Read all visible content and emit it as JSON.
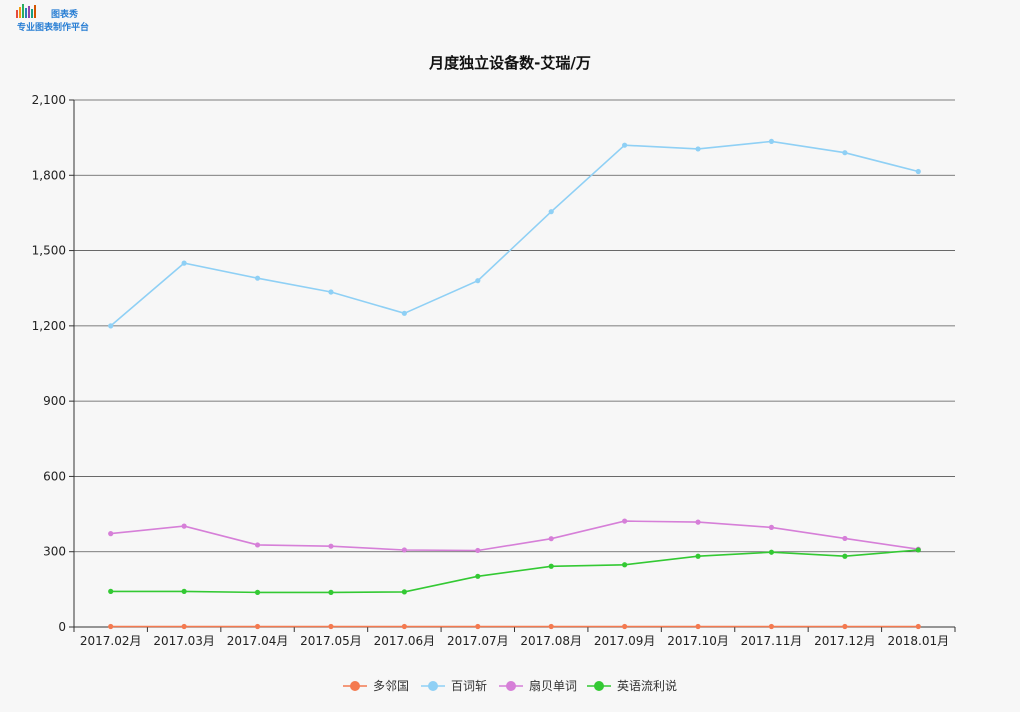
{
  "header": {
    "logo_main": "图表秀",
    "logo_sub": "专业图表制作平台"
  },
  "chart_data": {
    "type": "line",
    "title": "月度独立设备数-艾瑞/万",
    "xlabel": "",
    "ylabel": "",
    "categories": [
      "2017.02月",
      "2017.03月",
      "2017.04月",
      "2017.05月",
      "2017.06月",
      "2017.07月",
      "2017.08月",
      "2017.09月",
      "2017.10月",
      "2017.11月",
      "2017.12月",
      "2018.01月"
    ],
    "ylim": [
      0,
      2100
    ],
    "yticks": [
      0,
      300,
      600,
      900,
      1200,
      1500,
      1800,
      2100
    ],
    "ytick_labels": [
      "0",
      "300",
      "600",
      "900",
      "1,200",
      "1,500",
      "1,800",
      "2,100"
    ],
    "grid": true,
    "legend_position": "bottom",
    "series": [
      {
        "name": "多邻国",
        "color": "#f47a50",
        "values": [
          2,
          2,
          2,
          2,
          2,
          2,
          2,
          2,
          2,
          2,
          2,
          2
        ]
      },
      {
        "name": "百词斩",
        "color": "#8fd0f5",
        "values": [
          1200,
          1450,
          1390,
          1335,
          1250,
          1380,
          1655,
          1920,
          1905,
          1935,
          1890,
          1815
        ]
      },
      {
        "name": "扇贝单词",
        "color": "#d67fd8",
        "values": [
          372,
          402,
          327,
          322,
          307,
          305,
          352,
          422,
          418,
          397,
          353,
          310
        ]
      },
      {
        "name": "英语流利说",
        "color": "#33c933",
        "values": [
          142,
          142,
          138,
          138,
          140,
          202,
          242,
          248,
          282,
          298,
          282,
          307
        ]
      }
    ]
  }
}
